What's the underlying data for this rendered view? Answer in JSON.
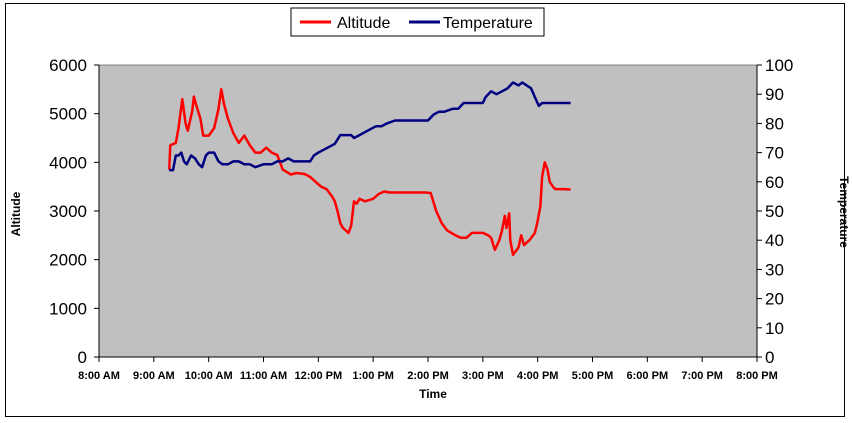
{
  "chart_data": {
    "type": "line",
    "title": "",
    "xlabel": "Time",
    "ylabel_left": "Altitude",
    "ylabel_right": "Temperature",
    "x_ticks": [
      "8:00 AM",
      "9:00 AM",
      "10:00 AM",
      "11:00 AM",
      "12:00 PM",
      "1:00 PM",
      "2:00 PM",
      "3:00 PM",
      "4:00 PM",
      "5:00 PM",
      "6:00 PM",
      "7:00 PM",
      "8:00 PM"
    ],
    "xlim_hours": [
      8,
      20
    ],
    "ylim_left": [
      0,
      6000
    ],
    "ylim_right": [
      0,
      100
    ],
    "y_ticks_left": [
      "0",
      "1000",
      "2000",
      "3000",
      "4000",
      "5000",
      "6000"
    ],
    "y_ticks_right": [
      "0",
      "10",
      "20",
      "30",
      "40",
      "50",
      "60",
      "70",
      "80",
      "90",
      "100"
    ],
    "legend_position": "top-center",
    "plot_background": "#c0c0c0",
    "series": [
      {
        "name": "Altitude",
        "axis": "left",
        "color": "#ff0000",
        "points": [
          [
            9.28,
            3850
          ],
          [
            9.3,
            4350
          ],
          [
            9.4,
            4400
          ],
          [
            9.45,
            4700
          ],
          [
            9.52,
            5300
          ],
          [
            9.58,
            4800
          ],
          [
            9.62,
            4650
          ],
          [
            9.7,
            5050
          ],
          [
            9.73,
            5350
          ],
          [
            9.78,
            5150
          ],
          [
            9.85,
            4900
          ],
          [
            9.9,
            4550
          ],
          [
            10.0,
            4550
          ],
          [
            10.1,
            4700
          ],
          [
            10.18,
            5100
          ],
          [
            10.23,
            5500
          ],
          [
            10.28,
            5200
          ],
          [
            10.35,
            4900
          ],
          [
            10.45,
            4600
          ],
          [
            10.55,
            4400
          ],
          [
            10.65,
            4550
          ],
          [
            10.75,
            4350
          ],
          [
            10.85,
            4200
          ],
          [
            10.95,
            4200
          ],
          [
            11.05,
            4300
          ],
          [
            11.15,
            4200
          ],
          [
            11.25,
            4150
          ],
          [
            11.3,
            4000
          ],
          [
            11.35,
            3850
          ],
          [
            11.5,
            3750
          ],
          [
            11.6,
            3780
          ],
          [
            11.75,
            3760
          ],
          [
            11.85,
            3700
          ],
          [
            11.95,
            3600
          ],
          [
            12.05,
            3500
          ],
          [
            12.15,
            3450
          ],
          [
            12.25,
            3300
          ],
          [
            12.3,
            3200
          ],
          [
            12.35,
            3000
          ],
          [
            12.4,
            2750
          ],
          [
            12.45,
            2650
          ],
          [
            12.5,
            2600
          ],
          [
            12.55,
            2550
          ],
          [
            12.6,
            2700
          ],
          [
            12.65,
            3200
          ],
          [
            12.7,
            3150
          ],
          [
            12.75,
            3250
          ],
          [
            12.85,
            3200
          ],
          [
            13.0,
            3250
          ],
          [
            13.1,
            3350
          ],
          [
            13.2,
            3400
          ],
          [
            13.3,
            3380
          ],
          [
            13.5,
            3380
          ],
          [
            13.6,
            3380
          ],
          [
            13.7,
            3380
          ],
          [
            13.8,
            3380
          ],
          [
            13.95,
            3380
          ],
          [
            14.05,
            3370
          ],
          [
            14.15,
            3000
          ],
          [
            14.25,
            2750
          ],
          [
            14.35,
            2600
          ],
          [
            14.5,
            2500
          ],
          [
            14.6,
            2450
          ],
          [
            14.7,
            2450
          ],
          [
            14.8,
            2550
          ],
          [
            15.0,
            2550
          ],
          [
            15.1,
            2500
          ],
          [
            15.15,
            2450
          ],
          [
            15.22,
            2200
          ],
          [
            15.3,
            2400
          ],
          [
            15.35,
            2600
          ],
          [
            15.4,
            2900
          ],
          [
            15.43,
            2650
          ],
          [
            15.48,
            2950
          ],
          [
            15.5,
            2400
          ],
          [
            15.55,
            2100
          ],
          [
            15.65,
            2250
          ],
          [
            15.7,
            2500
          ],
          [
            15.75,
            2300
          ],
          [
            15.85,
            2400
          ],
          [
            15.95,
            2550
          ],
          [
            16.0,
            2800
          ],
          [
            16.05,
            3100
          ],
          [
            16.08,
            3700
          ],
          [
            16.13,
            4000
          ],
          [
            16.18,
            3850
          ],
          [
            16.22,
            3600
          ],
          [
            16.28,
            3500
          ],
          [
            16.32,
            3450
          ],
          [
            16.4,
            3450
          ],
          [
            16.5,
            3450
          ],
          [
            16.6,
            3440
          ]
        ]
      },
      {
        "name": "Temperature",
        "axis": "right",
        "color": "#000080",
        "points": [
          [
            9.28,
            64
          ],
          [
            9.35,
            64
          ],
          [
            9.4,
            69
          ],
          [
            9.45,
            69
          ],
          [
            9.5,
            70
          ],
          [
            9.55,
            67
          ],
          [
            9.6,
            66
          ],
          [
            9.68,
            69
          ],
          [
            9.75,
            68
          ],
          [
            9.82,
            66
          ],
          [
            9.88,
            65
          ],
          [
            9.95,
            69
          ],
          [
            10.0,
            70
          ],
          [
            10.1,
            70
          ],
          [
            10.18,
            67
          ],
          [
            10.25,
            66
          ],
          [
            10.35,
            66
          ],
          [
            10.45,
            67
          ],
          [
            10.55,
            67
          ],
          [
            10.65,
            66
          ],
          [
            10.75,
            66
          ],
          [
            10.85,
            65
          ],
          [
            11.0,
            66
          ],
          [
            11.15,
            66
          ],
          [
            11.25,
            67
          ],
          [
            11.35,
            67
          ],
          [
            11.45,
            68
          ],
          [
            11.55,
            67
          ],
          [
            11.7,
            67
          ],
          [
            11.85,
            67
          ],
          [
            11.92,
            69
          ],
          [
            12.0,
            70
          ],
          [
            12.1,
            71
          ],
          [
            12.2,
            72
          ],
          [
            12.3,
            73
          ],
          [
            12.4,
            76
          ],
          [
            12.5,
            76
          ],
          [
            12.6,
            76
          ],
          [
            12.65,
            75
          ],
          [
            12.75,
            76
          ],
          [
            12.85,
            77
          ],
          [
            12.95,
            78
          ],
          [
            13.05,
            79
          ],
          [
            13.15,
            79
          ],
          [
            13.25,
            80
          ],
          [
            13.4,
            81
          ],
          [
            13.5,
            81
          ],
          [
            13.75,
            81
          ],
          [
            14.0,
            81
          ],
          [
            14.1,
            83
          ],
          [
            14.2,
            84
          ],
          [
            14.3,
            84
          ],
          [
            14.45,
            85
          ],
          [
            14.55,
            85
          ],
          [
            14.65,
            87
          ],
          [
            14.75,
            87
          ],
          [
            14.85,
            87
          ],
          [
            15.0,
            87
          ],
          [
            15.05,
            89
          ],
          [
            15.15,
            91
          ],
          [
            15.25,
            90
          ],
          [
            15.35,
            91
          ],
          [
            15.45,
            92
          ],
          [
            15.55,
            94
          ],
          [
            15.65,
            93
          ],
          [
            15.72,
            94
          ],
          [
            15.8,
            93
          ],
          [
            15.88,
            92
          ],
          [
            15.95,
            89
          ],
          [
            16.02,
            86
          ],
          [
            16.08,
            87
          ],
          [
            16.15,
            87
          ],
          [
            16.3,
            87
          ],
          [
            16.45,
            87
          ],
          [
            16.6,
            87
          ]
        ]
      }
    ]
  }
}
